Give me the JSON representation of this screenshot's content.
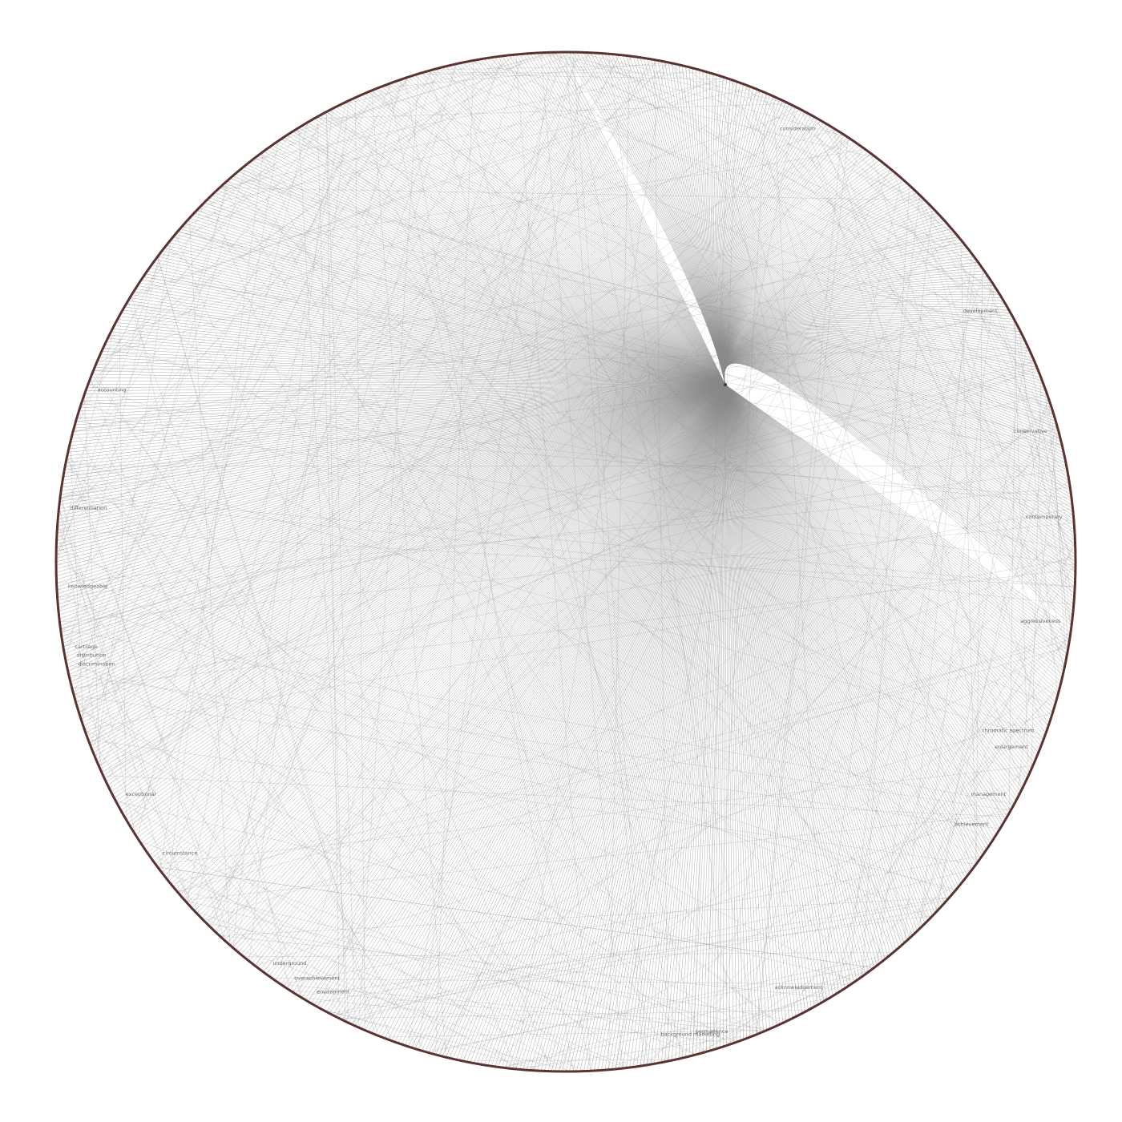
{
  "diagram": {
    "type": "network-graph",
    "layout": "circular",
    "edge_color": "#8a8a8a",
    "node_color": "#5a3030",
    "label_color": "#6b6b6b",
    "background": "#ffffff",
    "hub_label": "",
    "node_labels": [
      "accounting",
      "differentiation",
      "knowledgeable",
      "cartilage",
      "discrimination",
      "exceptional",
      "circumstance",
      "distribution",
      "underground",
      "environment",
      "overachievement",
      "background marketing",
      "acknowledgement",
      "enlargement",
      "chromatic spectrum",
      "aggressiveness",
      "contemporary",
      "development",
      "consideration",
      "conservative",
      "achievement",
      "management",
      "permanence"
    ]
  }
}
